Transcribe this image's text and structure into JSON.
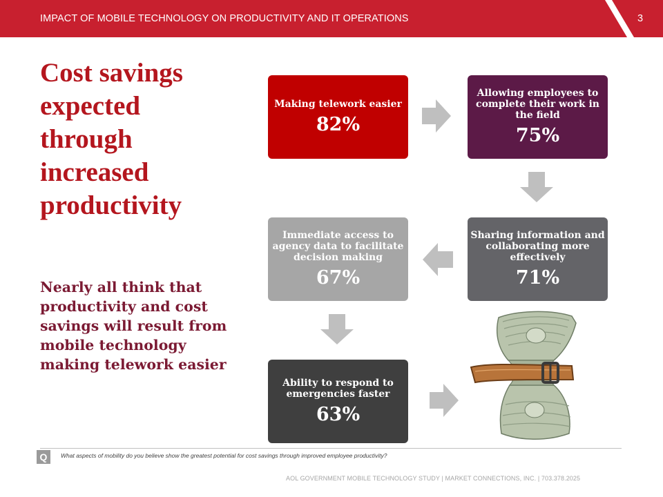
{
  "header": {
    "title": "IMPACT OF MOBILE TECHNOLOGY ON PRODUCTIVITY AND IT OPERATIONS",
    "page_number": "3"
  },
  "headline": "Cost savings expected through increased productivity",
  "subtext": "Nearly all think that productivity and cost savings will result from mobile technology making telework easier",
  "boxes": [
    {
      "label": "Making telework easier",
      "value": "82%",
      "color": "#c00000"
    },
    {
      "label": "Allowing employees to complete their work in the field",
      "value": "75%",
      "color": "#5c1a47"
    },
    {
      "label": "Sharing information and collaborating more effectively",
      "value": "71%",
      "color": "#646468"
    },
    {
      "label": "Immediate access to agency data to facilitate decision making",
      "value": "67%",
      "color": "#a6a6a6"
    },
    {
      "label": "Ability to respond to emergencies faster",
      "value": "63%",
      "color": "#3f3f3f"
    }
  ],
  "question": {
    "badge": "Q",
    "text": "What aspects of mobility do you believe show the greatest potential for cost savings through improved employee productivity?"
  },
  "footer": "AOL GOVERNMENT MOBILE TECHNOLOGY STUDY  |  MARKET CONNECTIONS, INC.  |  703.378.2025",
  "icons": [
    "right-arrow-icon",
    "down-arrow-icon",
    "left-arrow-icon",
    "money-belt-icon"
  ],
  "colors": {
    "brand_red": "#c8202f",
    "headline": "#b4161e",
    "subtext": "#7b1a33",
    "arrow": "#bfbfbf"
  }
}
